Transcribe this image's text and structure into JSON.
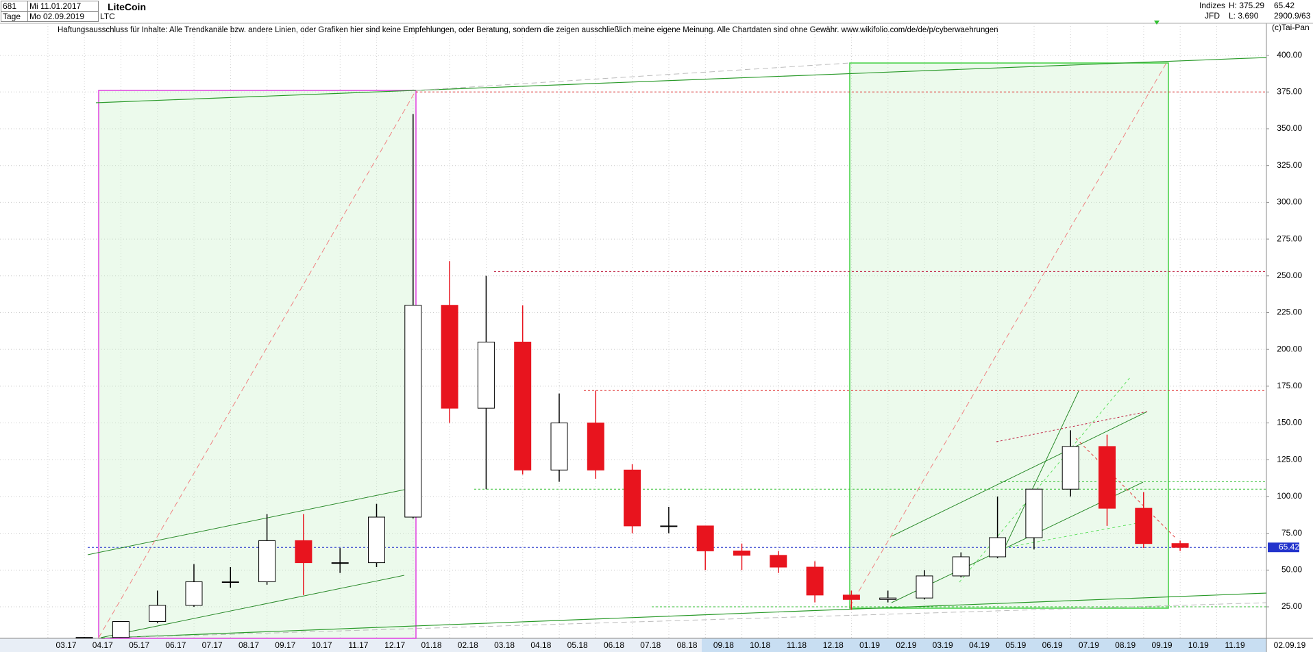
{
  "chart_data": {
    "type": "candlestick",
    "title": "LiteCoin",
    "symbol": "LTC",
    "counter": "681",
    "period": "Tage",
    "start_date": "Mi 11.01.2017",
    "end_date": "Mo 02.09.2019",
    "disclaimer": "Haftungsausschluss für Inhalte: Alle Trendkanäle bzw. andere Linien, oder Grafiken hier sind keine Empfehlungen, oder Beratung, sondern die zeigen ausschließlich meine eigene Meinung. Alle Chartdaten sind ohne Gewähr.  www.wikifolio.com/de/de/p/cyberwaehrungen",
    "info": {
      "group": "Indizes",
      "high": "H: 375.29",
      "last": "65.42",
      "source": "JFD",
      "low": "L: 3.690",
      "count": "2900.9/63",
      "copyright": "(c)Tai-Pan"
    },
    "categories": [
      "03.17",
      "04.17",
      "05.17",
      "06.17",
      "07.17",
      "08.17",
      "09.17",
      "10.17",
      "11.17",
      "12.17",
      "01.18",
      "02.18",
      "03.18",
      "04.18",
      "05.18",
      "06.18",
      "07.18",
      "08.18",
      "09.18",
      "10.18",
      "11.18",
      "12.18",
      "01.19",
      "02.19",
      "03.19",
      "04.19",
      "05.19",
      "06.19",
      "07.19",
      "08.19",
      "09.19",
      "10.19",
      "11.19"
    ],
    "last_date": "02.09.19",
    "series": [
      {
        "name": "LTC",
        "open": [
          4,
          4.2,
          15,
          26,
          42,
          42,
          70,
          55,
          55,
          86,
          230,
          160,
          205,
          118,
          150,
          118,
          80,
          80,
          63,
          60,
          52,
          33,
          30,
          31,
          46,
          59,
          72,
          105,
          134,
          92,
          68,
          null,
          null
        ],
        "high": [
          4.5,
          15,
          36,
          54,
          52,
          88,
          88,
          65,
          95,
          360,
          260,
          250,
          230,
          170,
          172,
          122,
          93,
          80,
          68,
          63,
          56,
          36,
          36,
          50,
          62,
          100,
          105,
          145,
          142,
          103,
          70,
          null,
          null
        ],
        "low": [
          3.7,
          4,
          14,
          25,
          38,
          40,
          33,
          48,
          52,
          85,
          150,
          105,
          115,
          110,
          112,
          75,
          75,
          50,
          50,
          48,
          28,
          23,
          28,
          30,
          45,
          58,
          64,
          100,
          80,
          65,
          63,
          null,
          null
        ],
        "close": [
          4.2,
          15,
          26,
          42,
          42,
          70,
          55,
          55,
          86,
          230,
          160,
          205,
          118,
          150,
          118,
          80,
          80,
          63,
          60,
          52,
          33,
          30,
          31,
          46,
          59,
          72,
          105,
          134,
          92,
          68,
          65.42,
          null,
          null
        ]
      }
    ],
    "up_color": "#000000",
    "down_color": "#e8141e",
    "last_price": 65.42,
    "last_price_color": "#2233cc",
    "levels": [
      {
        "value": 375,
        "color": "#e03030"
      },
      {
        "value": 253,
        "color": "#c02040"
      },
      {
        "value": 172,
        "color": "#e03030"
      },
      {
        "value": 110,
        "color": "#30c030"
      },
      {
        "value": 105,
        "color": "#30c030"
      },
      {
        "value": 25,
        "color": "#30c030"
      }
    ],
    "ylim": [
      3.6,
      421.7
    ],
    "yticks": [
      {
        "value": 25,
        "label": "25.00"
      },
      {
        "value": 50,
        "label": "50.00"
      },
      {
        "value": 75,
        "label": "75.00"
      },
      {
        "value": 100,
        "label": "100.00"
      },
      {
        "value": 125,
        "label": "125.00"
      },
      {
        "value": 150,
        "label": "150.00"
      },
      {
        "value": 175,
        "label": "175.00"
      },
      {
        "value": 200,
        "label": "200.00"
      },
      {
        "value": 225,
        "label": "225.00"
      },
      {
        "value": 250,
        "label": "250.00"
      },
      {
        "value": 275,
        "label": "275.00"
      },
      {
        "value": 300,
        "label": "300.00"
      },
      {
        "value": 325,
        "label": "325.00"
      },
      {
        "value": 350,
        "label": "350.00"
      },
      {
        "value": 375,
        "label": "375.00"
      },
      {
        "value": 400,
        "label": "400.00"
      }
    ],
    "grid": true
  }
}
